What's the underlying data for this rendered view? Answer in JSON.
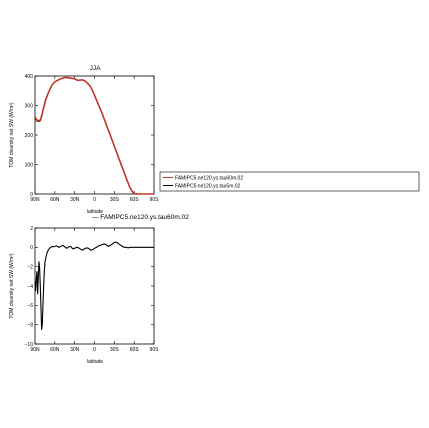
{
  "chart_data": [
    {
      "type": "line",
      "title": "JJA",
      "xlabel": "latitude",
      "ylabel": "TOM clearsky net SW (W/m²)",
      "xlim": [
        90,
        -90
      ],
      "ylim": [
        0,
        400
      ],
      "x_ticks": [
        90,
        60,
        30,
        0,
        -30,
        -60,
        -90
      ],
      "x_tick_labels": [
        "90N",
        "60N",
        "30N",
        "0",
        "30S",
        "60S",
        "90S"
      ],
      "y_ticks": [
        0,
        100,
        200,
        300,
        400
      ],
      "y_tick_labels": [
        "0",
        "100",
        "200",
        "300",
        "400"
      ],
      "legend": {
        "placement": "right",
        "entries": [
          "FAMIPC5.ne120.ys.tau60m.02",
          "FAMIPC5.ne120.ys.tau5m.02"
        ]
      },
      "series": [
        {
          "name": "FAMIPC5.ne120.ys.tau60m.02",
          "color": "#c0392b",
          "x": [
            90,
            87,
            84,
            82,
            80,
            78,
            76,
            74,
            72,
            70,
            67,
            64,
            61,
            58,
            55,
            52,
            49,
            46,
            43,
            40,
            37,
            34,
            31,
            28,
            25,
            22,
            19,
            16,
            13,
            10,
            7,
            4,
            1,
            -2,
            -5,
            -8,
            -11,
            -14,
            -17,
            -20,
            -23,
            -26,
            -29,
            -32,
            -35,
            -38,
            -41,
            -44,
            -47,
            -50,
            -53,
            -56,
            -59,
            -62,
            -65,
            -68,
            -71,
            -74,
            -77,
            -80,
            -83,
            -86,
            -90
          ],
          "y": [
            262,
            250,
            249,
            250,
            265,
            283,
            300,
            318,
            330,
            342,
            357,
            370,
            378,
            383,
            386,
            390,
            392,
            394,
            395,
            394,
            393,
            392,
            391,
            388,
            385,
            386,
            387,
            385,
            381,
            374,
            367,
            355,
            340,
            324,
            308,
            292,
            276,
            258,
            240,
            222,
            205,
            186,
            168,
            150,
            132,
            114,
            96,
            78,
            60,
            42,
            25,
            12,
            4,
            1,
            0,
            0,
            0,
            0,
            0,
            0,
            0,
            0,
            0
          ]
        },
        {
          "name": "FAMIPC5.ne120.ys.tau5m.02",
          "color": "#000000",
          "x": [
            90,
            87,
            84,
            82,
            80,
            78,
            76,
            74,
            72,
            70,
            67,
            64,
            61,
            58,
            55,
            52,
            49,
            46,
            43,
            40,
            37,
            34,
            31,
            28,
            25,
            22,
            19,
            16,
            13,
            10,
            7,
            4,
            1,
            -2,
            -5,
            -8,
            -11,
            -14,
            -17,
            -20,
            -23,
            -26,
            -29,
            -32,
            -35,
            -38,
            -41,
            -44,
            -47,
            -50,
            -53,
            -56,
            -59,
            -62,
            -65,
            -68,
            -71,
            -74,
            -77,
            -80,
            -83,
            -86,
            -90
          ],
          "y": [
            258,
            247,
            246,
            248,
            262,
            282,
            302,
            320,
            331,
            342,
            357,
            370,
            378,
            383,
            386,
            390,
            392,
            394,
            395,
            394,
            393,
            392,
            391,
            388,
            385,
            386,
            387,
            385,
            381,
            374,
            367,
            355,
            340,
            324,
            308,
            292,
            276,
            258,
            240,
            222,
            205,
            186,
            168,
            150,
            132,
            114,
            96,
            78,
            60,
            42,
            25,
            12,
            4,
            1,
            0,
            0,
            0,
            0,
            0,
            0,
            0,
            0,
            0
          ]
        }
      ]
    },
    {
      "type": "line",
      "title": "— FAMIPC5.ne120.ys.tau60m.02",
      "xlabel": "latitude",
      "ylabel": "TOM clearsky net SW (W/m²)",
      "xlim": [
        90,
        -90
      ],
      "ylim": [
        -10,
        2
      ],
      "x_ticks": [
        90,
        60,
        30,
        0,
        -30,
        -60,
        -90
      ],
      "x_tick_labels": [
        "90N",
        "60N",
        "30N",
        "0",
        "30S",
        "60S",
        "90S"
      ],
      "y_ticks": [
        -10,
        -8,
        -6,
        -4,
        -2,
        0,
        2
      ],
      "y_tick_labels": [
        "−10",
        "−8",
        "−6",
        "−4",
        "−2",
        "0",
        "2"
      ],
      "series": [
        {
          "color": "#000000",
          "x": [
            90,
            89,
            88,
            87,
            86,
            85,
            84,
            83,
            82,
            81,
            80,
            79,
            78,
            77,
            76,
            75,
            74,
            72,
            70,
            68,
            66,
            64,
            62,
            60,
            57,
            54,
            51,
            48,
            45,
            42,
            39,
            36,
            33,
            30,
            27,
            24,
            21,
            18,
            15,
            12,
            9,
            6,
            3,
            0,
            -3,
            -6,
            -9,
            -12,
            -15,
            -18,
            -21,
            -24,
            -27,
            -30,
            -33,
            -36,
            -39,
            -42,
            -45,
            -48,
            -51,
            -54,
            -57,
            -60,
            -65,
            -70,
            -75,
            -80,
            -85,
            -90
          ],
          "y": [
            -3.6,
            -4.5,
            -3.2,
            -2.5,
            -4.8,
            -3.0,
            -1.5,
            -2.2,
            -4.0,
            -6.2,
            -8.5,
            -8.0,
            -6.0,
            -4.2,
            -2.6,
            -1.6,
            -1.2,
            -0.6,
            -0.3,
            -0.1,
            0.0,
            0.1,
            0.05,
            0.1,
            0.15,
            0.0,
            0.1,
            0.2,
            0.05,
            -0.1,
            0.05,
            0.1,
            -0.15,
            -0.1,
            0.0,
            -0.05,
            -0.2,
            -0.3,
            -0.15,
            -0.05,
            -0.1,
            -0.3,
            -0.25,
            -0.1,
            0.0,
            0.15,
            0.2,
            0.3,
            0.35,
            0.25,
            0.1,
            0.2,
            0.35,
            0.5,
            0.55,
            0.4,
            0.25,
            0.1,
            0.0,
            0.0,
            -0.05,
            0.0,
            0.0,
            0.0,
            0.0,
            0.0,
            0.0,
            0.0,
            0.0,
            0.0
          ]
        }
      ]
    }
  ]
}
